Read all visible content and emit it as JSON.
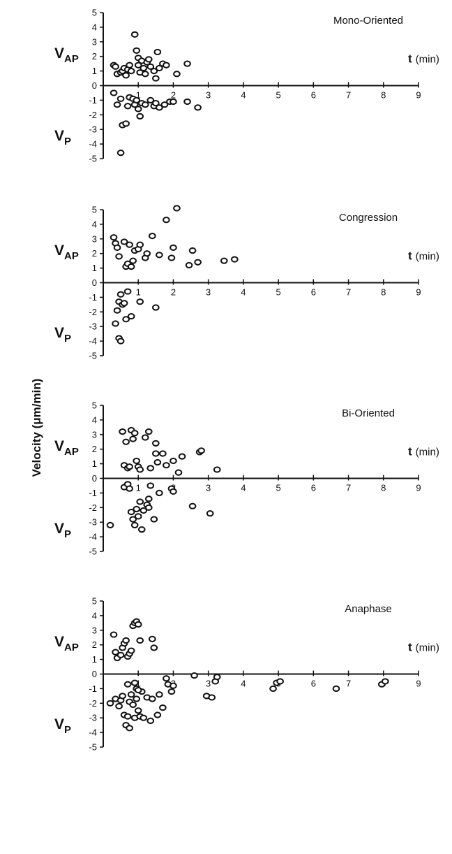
{
  "chart_data": {
    "type": "scatter",
    "ylabel": "Velocity (μm/min)",
    "xlabel_symbol": "t",
    "xlabel_unit": "(min)",
    "y_top_symbol": "V",
    "y_top_sub": "AP",
    "y_bottom_symbol": "V",
    "y_bottom_sub": "P",
    "xlim": [
      0,
      9
    ],
    "ylim": [
      -5,
      5
    ],
    "x_ticks": [
      1,
      2,
      3,
      4,
      5,
      6,
      7,
      8,
      9
    ],
    "y_ticks": [
      5,
      4,
      3,
      2,
      1,
      0,
      -1,
      -2,
      -3,
      -4,
      -5
    ],
    "grid": false,
    "panels": [
      {
        "title": "Mono-Oriented",
        "points": [
          [
            0.3,
            1.4
          ],
          [
            0.35,
            1.3
          ],
          [
            0.4,
            0.8
          ],
          [
            0.5,
            0.9
          ],
          [
            0.55,
            1.0
          ],
          [
            0.6,
            1.2
          ],
          [
            0.65,
            0.7
          ],
          [
            0.7,
            1.1
          ],
          [
            0.75,
            1.4
          ],
          [
            0.8,
            1.0
          ],
          [
            0.9,
            3.5
          ],
          [
            0.95,
            2.4
          ],
          [
            1.0,
            1.9
          ],
          [
            1.0,
            1.4
          ],
          [
            1.05,
            0.9
          ],
          [
            1.1,
            1.7
          ],
          [
            1.15,
            1.2
          ],
          [
            1.2,
            0.8
          ],
          [
            1.25,
            1.6
          ],
          [
            1.3,
            1.8
          ],
          [
            1.35,
            1.3
          ],
          [
            1.45,
            1.0
          ],
          [
            1.5,
            0.5
          ],
          [
            1.55,
            2.3
          ],
          [
            1.6,
            1.2
          ],
          [
            1.7,
            1.5
          ],
          [
            1.8,
            1.4
          ],
          [
            2.1,
            0.8
          ],
          [
            2.4,
            1.5
          ],
          [
            0.3,
            -0.5
          ],
          [
            0.4,
            -1.3
          ],
          [
            0.5,
            -0.9
          ],
          [
            0.55,
            -2.7
          ],
          [
            0.65,
            -2.6
          ],
          [
            0.7,
            -1.4
          ],
          [
            0.75,
            -0.8
          ],
          [
            0.85,
            -0.9
          ],
          [
            0.9,
            -1.3
          ],
          [
            0.95,
            -1.0
          ],
          [
            1.0,
            -1.6
          ],
          [
            1.05,
            -2.1
          ],
          [
            1.1,
            -1.2
          ],
          [
            1.2,
            -1.3
          ],
          [
            1.35,
            -1.0
          ],
          [
            1.45,
            -1.4
          ],
          [
            1.5,
            -1.2
          ],
          [
            1.6,
            -1.5
          ],
          [
            1.75,
            -1.3
          ],
          [
            1.9,
            -1.1
          ],
          [
            2.0,
            -1.1
          ],
          [
            2.4,
            -1.1
          ],
          [
            2.7,
            -1.5
          ],
          [
            0.5,
            -4.6
          ]
        ]
      },
      {
        "title": "Congression",
        "points": [
          [
            0.3,
            3.1
          ],
          [
            0.35,
            2.7
          ],
          [
            0.4,
            2.4
          ],
          [
            0.45,
            1.8
          ],
          [
            0.6,
            2.8
          ],
          [
            0.65,
            1.1
          ],
          [
            0.7,
            1.3
          ],
          [
            0.75,
            2.6
          ],
          [
            0.8,
            1.1
          ],
          [
            0.85,
            1.5
          ],
          [
            0.9,
            2.2
          ],
          [
            1.0,
            2.3
          ],
          [
            1.05,
            2.6
          ],
          [
            1.2,
            1.7
          ],
          [
            1.25,
            2.0
          ],
          [
            1.4,
            3.2
          ],
          [
            1.6,
            1.9
          ],
          [
            1.8,
            4.3
          ],
          [
            1.95,
            1.7
          ],
          [
            2.0,
            2.4
          ],
          [
            2.1,
            5.1
          ],
          [
            2.45,
            1.2
          ],
          [
            2.55,
            2.2
          ],
          [
            2.7,
            1.4
          ],
          [
            3.45,
            1.5
          ],
          [
            3.75,
            1.6
          ],
          [
            0.35,
            -2.8
          ],
          [
            0.4,
            -1.9
          ],
          [
            0.45,
            -1.3
          ],
          [
            0.5,
            -0.8
          ],
          [
            0.55,
            -1.5
          ],
          [
            0.6,
            -1.4
          ],
          [
            0.65,
            -2.5
          ],
          [
            0.7,
            -0.6
          ],
          [
            0.8,
            -2.3
          ],
          [
            1.05,
            -1.3
          ],
          [
            1.5,
            -1.7
          ],
          [
            0.45,
            -3.8
          ],
          [
            0.5,
            -4.0
          ]
        ]
      },
      {
        "title": "Bi-Oriented",
        "points": [
          [
            0.55,
            3.2
          ],
          [
            0.6,
            0.9
          ],
          [
            0.65,
            2.5
          ],
          [
            0.7,
            0.7
          ],
          [
            0.75,
            0.8
          ],
          [
            0.8,
            3.3
          ],
          [
            0.85,
            2.7
          ],
          [
            0.9,
            3.1
          ],
          [
            0.95,
            1.2
          ],
          [
            1.0,
            0.8
          ],
          [
            1.05,
            0.6
          ],
          [
            1.2,
            2.8
          ],
          [
            1.3,
            3.2
          ],
          [
            1.35,
            0.7
          ],
          [
            1.5,
            2.4
          ],
          [
            1.5,
            1.7
          ],
          [
            1.55,
            1.1
          ],
          [
            1.7,
            1.7
          ],
          [
            1.8,
            0.9
          ],
          [
            2.0,
            1.2
          ],
          [
            2.15,
            0.4
          ],
          [
            2.25,
            1.5
          ],
          [
            2.75,
            1.8
          ],
          [
            2.8,
            1.9
          ],
          [
            3.25,
            0.6
          ],
          [
            0.2,
            -3.2
          ],
          [
            0.6,
            -0.6
          ],
          [
            0.7,
            -0.4
          ],
          [
            0.75,
            -0.7
          ],
          [
            0.8,
            -2.3
          ],
          [
            0.85,
            -2.8
          ],
          [
            0.9,
            -3.2
          ],
          [
            0.95,
            -2.1
          ],
          [
            1.0,
            -2.6
          ],
          [
            1.05,
            -1.6
          ],
          [
            1.1,
            -3.5
          ],
          [
            1.15,
            -2.2
          ],
          [
            1.25,
            -1.8
          ],
          [
            1.3,
            -1.4
          ],
          [
            1.3,
            -2.0
          ],
          [
            1.35,
            -0.5
          ],
          [
            1.45,
            -2.8
          ],
          [
            1.6,
            -1.0
          ],
          [
            1.95,
            -0.7
          ],
          [
            2.0,
            -0.9
          ],
          [
            2.55,
            -1.9
          ],
          [
            3.05,
            -2.4
          ]
        ]
      },
      {
        "title": "Anaphase",
        "points": [
          [
            0.3,
            2.7
          ],
          [
            0.35,
            1.5
          ],
          [
            0.4,
            1.1
          ],
          [
            0.5,
            1.3
          ],
          [
            0.55,
            1.8
          ],
          [
            0.6,
            2.1
          ],
          [
            0.65,
            2.3
          ],
          [
            0.7,
            1.2
          ],
          [
            0.75,
            1.4
          ],
          [
            0.8,
            1.6
          ],
          [
            0.85,
            3.3
          ],
          [
            0.9,
            3.5
          ],
          [
            0.95,
            3.6
          ],
          [
            1.0,
            3.4
          ],
          [
            1.05,
            2.3
          ],
          [
            1.4,
            2.4
          ],
          [
            1.45,
            1.8
          ],
          [
            0.2,
            -2.0
          ],
          [
            0.35,
            -1.7
          ],
          [
            0.45,
            -2.2
          ],
          [
            0.5,
            -1.8
          ],
          [
            0.55,
            -1.5
          ],
          [
            0.6,
            -2.8
          ],
          [
            0.65,
            -3.5
          ],
          [
            0.7,
            -2.9
          ],
          [
            0.75,
            -1.9
          ],
          [
            0.8,
            -1.4
          ],
          [
            0.85,
            -2.1
          ],
          [
            0.9,
            -3.0
          ],
          [
            0.95,
            -1.7
          ],
          [
            1.0,
            -2.5
          ],
          [
            1.05,
            -2.9
          ],
          [
            1.1,
            -1.2
          ],
          [
            1.15,
            -3.0
          ],
          [
            1.25,
            -1.6
          ],
          [
            1.35,
            -3.2
          ],
          [
            1.4,
            -1.7
          ],
          [
            1.55,
            -2.8
          ],
          [
            1.6,
            -1.4
          ],
          [
            1.7,
            -2.3
          ],
          [
            1.8,
            -0.3
          ],
          [
            1.85,
            -0.7
          ],
          [
            1.95,
            -1.2
          ],
          [
            2.0,
            -0.8
          ],
          [
            2.6,
            -0.1
          ],
          [
            2.95,
            -1.5
          ],
          [
            3.1,
            -1.6
          ],
          [
            3.2,
            -0.5
          ],
          [
            3.25,
            -0.2
          ],
          [
            4.85,
            -1.0
          ],
          [
            4.95,
            -0.6
          ],
          [
            5.05,
            -0.5
          ],
          [
            6.65,
            -1.0
          ],
          [
            7.95,
            -0.7
          ],
          [
            8.05,
            -0.5
          ],
          [
            0.7,
            -0.7
          ],
          [
            0.9,
            -0.6
          ],
          [
            0.95,
            -1.0
          ],
          [
            1.0,
            -1.1
          ],
          [
            0.75,
            -3.7
          ]
        ]
      }
    ]
  }
}
